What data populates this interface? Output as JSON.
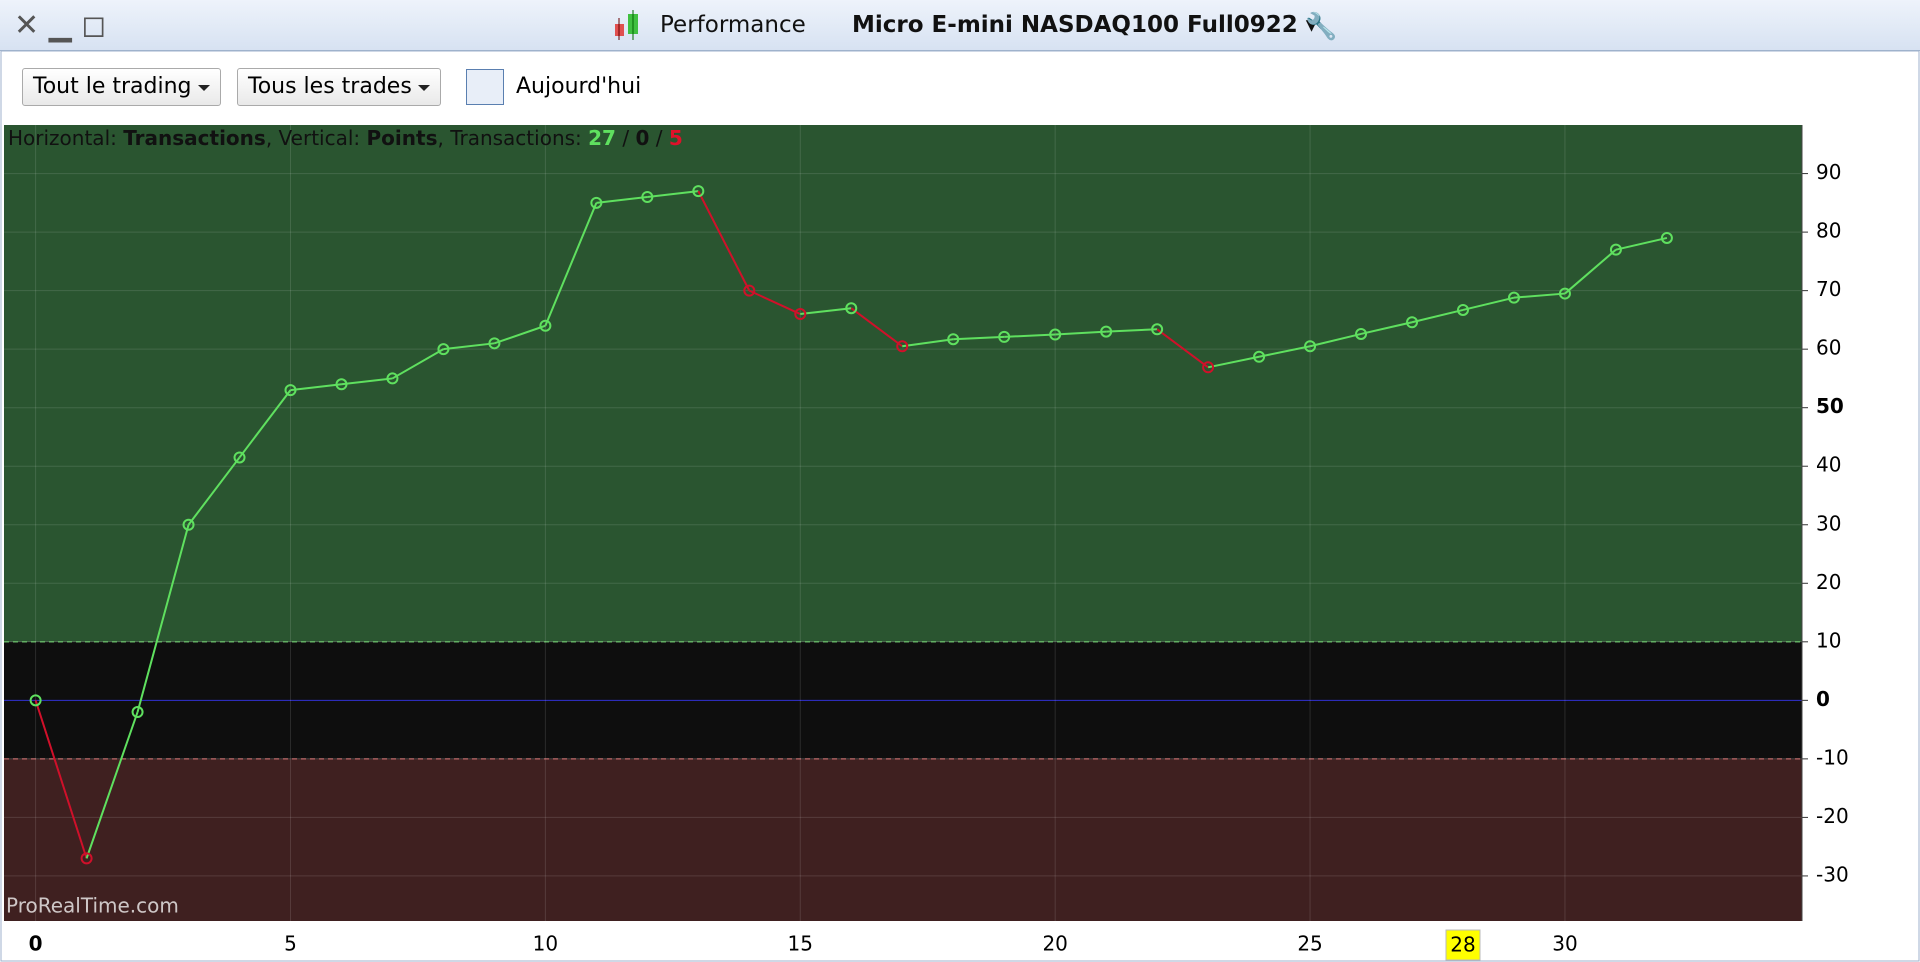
{
  "window": {
    "title": "Performance",
    "instrument": "Micro E-mini NASDAQ100 Full0922"
  },
  "toolbar": {
    "scope": "Tout le trading",
    "trades": "Tous les trades",
    "date": "Aujourd'hui"
  },
  "info": {
    "parts": [
      "Horizontal: ",
      "Transactions",
      ", Vertical: ",
      "Points",
      ", Transactions: "
    ],
    "wins": 27,
    "even": 0,
    "losses": 5,
    "separator": " / "
  },
  "chart_data": {
    "type": "line",
    "watermark": "ProRealTime.com",
    "x": [
      0,
      1,
      2,
      3,
      4,
      5,
      6,
      7,
      8,
      9,
      10,
      11,
      12,
      13,
      14,
      15,
      16,
      17,
      18,
      19,
      20,
      21,
      22,
      23,
      24,
      25,
      26,
      27,
      28,
      29,
      30,
      31,
      32
    ],
    "series": [
      {
        "name": "Points",
        "color": "#5fe05f",
        "down_color": "#d0102a",
        "values": [
          0,
          -27,
          -2,
          30,
          41.5,
          53,
          54,
          55,
          60,
          61,
          64,
          85,
          86,
          87,
          70,
          66,
          67,
          60.5,
          61.7,
          62.1,
          62.5,
          63,
          63.4,
          56.9,
          58.7,
          60.5,
          62.6,
          64.6,
          66.7,
          68.8,
          69.5,
          77,
          79
        ]
      }
    ],
    "xlim": [
      -0.62,
      34.65
    ],
    "ylim": [
      -37.7,
      98.3
    ],
    "xticks": [
      0,
      5,
      10,
      15,
      20,
      25,
      30
    ],
    "yticks": [
      -30,
      -20,
      -10,
      0,
      10,
      20,
      30,
      40,
      50,
      60,
      70,
      80,
      90
    ],
    "cursor_x": 28,
    "zone_limits": [
      -10,
      10
    ],
    "grid": true
  }
}
